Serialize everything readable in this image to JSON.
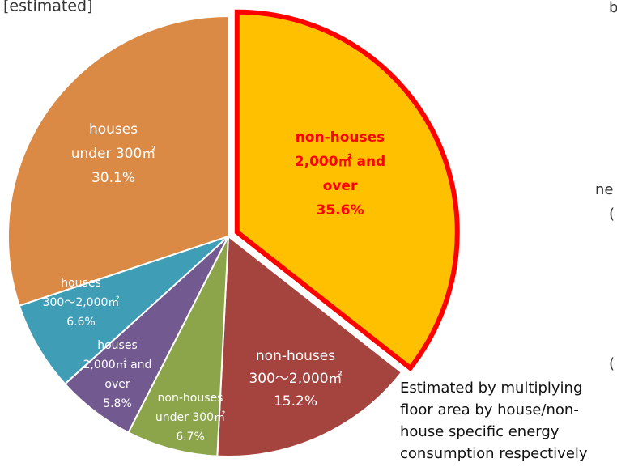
{
  "chart_data": {
    "type": "pie",
    "title": "[estimated]",
    "categories": [
      [
        "non-houses",
        "2,000㎡ and",
        "over"
      ],
      [
        "non-houses",
        "300～2,000㎡"
      ],
      [
        "non-houses",
        "under 300㎡"
      ],
      [
        "houses",
        "2,000㎡ and",
        "over"
      ],
      [
        "houses",
        "300～2,000㎡"
      ],
      [
        "houses",
        "under 300㎡"
      ]
    ],
    "values": [
      35.6,
      15.2,
      6.7,
      5.8,
      6.6,
      30.1
    ],
    "value_labels": [
      "35.6%",
      "15.2%",
      "6.7%",
      "5.8%",
      "6.6%",
      "30.1%"
    ],
    "colors": [
      "#FFC000",
      "#A5443F",
      "#8CA54B",
      "#725A91",
      "#3F9EB5",
      "#DB8A45"
    ],
    "highlight": 0,
    "annotation": [
      "Estimated by multiplying",
      "floor area by house/non-",
      "house specific energy",
      "consumption respectively"
    ],
    "fragments": [
      "b",
      "ne",
      "(",
      "("
    ]
  }
}
